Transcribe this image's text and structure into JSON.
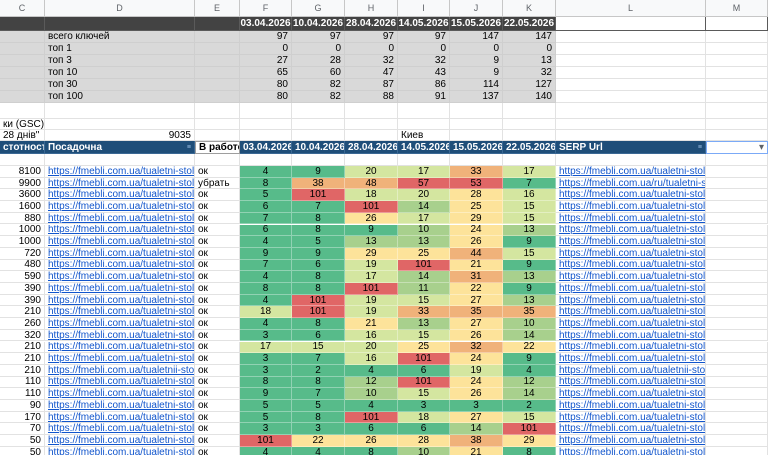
{
  "column_letters": [
    "C",
    "D",
    "E",
    "F",
    "G",
    "H",
    "I",
    "J",
    "K",
    "L",
    "M"
  ],
  "dates": [
    "03.04.2026",
    "10.04.2026",
    "28.04.2026",
    "14.05.2026",
    "15.05.2026",
    "22.05.2026"
  ],
  "summary_rows": [
    {
      "label": "всего ключей",
      "values": [
        "97",
        "97",
        "97",
        "97",
        "147",
        "147"
      ]
    },
    {
      "label": "топ 1",
      "values": [
        "0",
        "0",
        "0",
        "0",
        "0",
        "0"
      ]
    },
    {
      "label": "топ 3",
      "values": [
        "27",
        "28",
        "32",
        "32",
        "9",
        "13"
      ]
    },
    {
      "label": "топ 10",
      "values": [
        "65",
        "60",
        "47",
        "43",
        "9",
        "32"
      ]
    },
    {
      "label": "топ 30",
      "values": [
        "80",
        "82",
        "87",
        "86",
        "114",
        "127"
      ]
    },
    {
      "label": "топ 100",
      "values": [
        "80",
        "82",
        "88",
        "91",
        "137",
        "140"
      ]
    }
  ],
  "info": {
    "gsc_label": "ки (GSC)",
    "days_label": "28 днів\"",
    "gsc_value": "9035",
    "region": "Киев"
  },
  "filter_header": {
    "frequency": "стотность",
    "landing": "Посадочна",
    "in_work": "В работе",
    "serp_url": "SERP Url"
  },
  "colors": {
    "green": "#57bb8a",
    "light_green": "#a8d08d",
    "yellow_green": "#d4e6a0",
    "yellow": "#fde39a",
    "orange": "#f0b27a",
    "red": "#e06666",
    "link": "#1155cc",
    "header_dark": "#434343",
    "header_blue": "#1f4e79"
  },
  "rows": [
    {
      "freq": "8100",
      "url": "https://fmebli.com.ua/tualetni-stoliki",
      "status": "ок",
      "pos": [
        "4",
        "9",
        "20",
        "17",
        "33",
        "17"
      ],
      "serp": "https://fmebli.com.ua/tualetni-stoliki"
    },
    {
      "freq": "9900",
      "url": "https://fmebli.com.ua/tualetni-stoliki",
      "status": "убрать",
      "pos": [
        "8",
        "38",
        "48",
        "57",
        "53",
        "7"
      ],
      "serp": "https://fmebli.com.ua/ru/tualetni-stoliki"
    },
    {
      "freq": "3600",
      "url": "https://fmebli.com.ua/tualetni-stoliki",
      "status": "ок",
      "pos": [
        "5",
        "101",
        "18",
        "20",
        "28",
        "16"
      ],
      "serp": "https://fmebli.com.ua/tualetni-stoliki"
    },
    {
      "freq": "1600",
      "url": "https://fmebli.com.ua/tualetni-stoliki",
      "status": "ок",
      "pos": [
        "6",
        "7",
        "101",
        "14",
        "25",
        "15"
      ],
      "serp": "https://fmebli.com.ua/tualetni-stoliki"
    },
    {
      "freq": "880",
      "url": "https://fmebli.com.ua/tualetni-stoliki",
      "status": "ок",
      "pos": [
        "7",
        "8",
        "26",
        "17",
        "29",
        "15"
      ],
      "serp": "https://fmebli.com.ua/tualetni-stoliki"
    },
    {
      "freq": "1000",
      "url": "https://fmebli.com.ua/tualetni-stoliki",
      "status": "ок",
      "pos": [
        "6",
        "8",
        "9",
        "10",
        "24",
        "13"
      ],
      "serp": "https://fmebli.com.ua/tualetni-stoliki"
    },
    {
      "freq": "1000",
      "url": "https://fmebli.com.ua/tualetni-stoliki",
      "status": "ок",
      "pos": [
        "4",
        "5",
        "13",
        "13",
        "26",
        "9"
      ],
      "serp": "https://fmebli.com.ua/tualetni-stoliki"
    },
    {
      "freq": "720",
      "url": "https://fmebli.com.ua/tualetni-stoliki",
      "status": "ок",
      "pos": [
        "9",
        "9",
        "29",
        "25",
        "44",
        "15"
      ],
      "serp": "https://fmebli.com.ua/tualetni-stoliki"
    },
    {
      "freq": "480",
      "url": "https://fmebli.com.ua/tualetni-stoliki",
      "status": "ок",
      "pos": [
        "7",
        "6",
        "19",
        "101",
        "21",
        "9"
      ],
      "serp": "https://fmebli.com.ua/tualetni-stoliki"
    },
    {
      "freq": "590",
      "url": "https://fmebli.com.ua/tualetni-stoliki",
      "status": "ок",
      "pos": [
        "4",
        "8",
        "17",
        "14",
        "31",
        "13"
      ],
      "serp": "https://fmebli.com.ua/tualetni-stoliki"
    },
    {
      "freq": "390",
      "url": "https://fmebli.com.ua/tualetni-stoliki",
      "status": "ок",
      "pos": [
        "8",
        "8",
        "101",
        "11",
        "22",
        "9"
      ],
      "serp": "https://fmebli.com.ua/tualetni-stoliki"
    },
    {
      "freq": "390",
      "url": "https://fmebli.com.ua/tualetni-stoliki",
      "status": "ок",
      "pos": [
        "4",
        "101",
        "19",
        "15",
        "27",
        "13"
      ],
      "serp": "https://fmebli.com.ua/tualetni-stoliki"
    },
    {
      "freq": "210",
      "url": "https://fmebli.com.ua/tualetni-stoliki",
      "status": "ок",
      "pos": [
        "18",
        "101",
        "19",
        "33",
        "35",
        "35"
      ],
      "serp": "https://fmebli.com.ua/tualetni-stoliki"
    },
    {
      "freq": "260",
      "url": "https://fmebli.com.ua/tualetni-stoliki",
      "status": "ок",
      "pos": [
        "4",
        "8",
        "21",
        "13",
        "27",
        "10"
      ],
      "serp": "https://fmebli.com.ua/tualetni-stoliki"
    },
    {
      "freq": "320",
      "url": "https://fmebli.com.ua/tualetni-stoliki",
      "status": "ок",
      "pos": [
        "3",
        "6",
        "16",
        "15",
        "26",
        "14"
      ],
      "serp": "https://fmebli.com.ua/tualetni-stoliki"
    },
    {
      "freq": "210",
      "url": "https://fmebli.com.ua/tualetni-stoliki",
      "status": "ок",
      "pos": [
        "17",
        "15",
        "20",
        "25",
        "32",
        "22"
      ],
      "serp": "https://fmebli.com.ua/tualetni-stoliki"
    },
    {
      "freq": "210",
      "url": "https://fmebli.com.ua/tualetni-stoliki",
      "status": "ок",
      "pos": [
        "3",
        "7",
        "16",
        "101",
        "24",
        "9"
      ],
      "serp": "https://fmebli.com.ua/tualetni-stoliki"
    },
    {
      "freq": "210",
      "url": "https://fmebli.com.ua/tualetnii-stolik",
      "status": "ок",
      "pos": [
        "3",
        "2",
        "4",
        "6",
        "19",
        "4"
      ],
      "serp": "https://fmebli.com.ua/tualetnii-stolik"
    },
    {
      "freq": "110",
      "url": "https://fmebli.com.ua/tualetni-stoliki",
      "status": "ок",
      "pos": [
        "8",
        "8",
        "12",
        "101",
        "24",
        "12"
      ],
      "serp": "https://fmebli.com.ua/tualetni-stoliki"
    },
    {
      "freq": "110",
      "url": "https://fmebli.com.ua/tualetni-stoliki",
      "status": "ок",
      "pos": [
        "9",
        "7",
        "10",
        "15",
        "26",
        "14"
      ],
      "serp": "https://fmebli.com.ua/tualetni-stoliki"
    },
    {
      "freq": "90",
      "url": "https://fmebli.com.ua/tualetni-stoliki",
      "status": "ок",
      "pos": [
        "5",
        "5",
        "4",
        "3",
        "3",
        "2"
      ],
      "serp": "https://fmebli.com.ua/tualetni-stoliki"
    },
    {
      "freq": "170",
      "url": "https://fmebli.com.ua/tualetni-stoliki",
      "status": "ок",
      "pos": [
        "5",
        "8",
        "101",
        "18",
        "27",
        "15"
      ],
      "serp": "https://fmebli.com.ua/tualetni-stoliki"
    },
    {
      "freq": "70",
      "url": "https://fmebli.com.ua/tualetni-stoliki",
      "status": "ок",
      "pos": [
        "3",
        "3",
        "6",
        "6",
        "14",
        "101"
      ],
      "serp": "https://fmebli.com.ua/tualetni-stoliki"
    },
    {
      "freq": "50",
      "url": "https://fmebli.com.ua/tualetni-stoliki",
      "status": "ок",
      "pos": [
        "101",
        "22",
        "26",
        "28",
        "38",
        "29"
      ],
      "serp": "https://fmebli.com.ua/tualetni-stoliki"
    },
    {
      "freq": "50",
      "url": "https://fmebli.com.ua/tualetni-stoliki",
      "status": "ок",
      "pos": [
        "4",
        "4",
        "8",
        "10",
        "21",
        "8"
      ],
      "serp": "https://fmebli.com.ua/tualetni-stoliki"
    }
  ]
}
